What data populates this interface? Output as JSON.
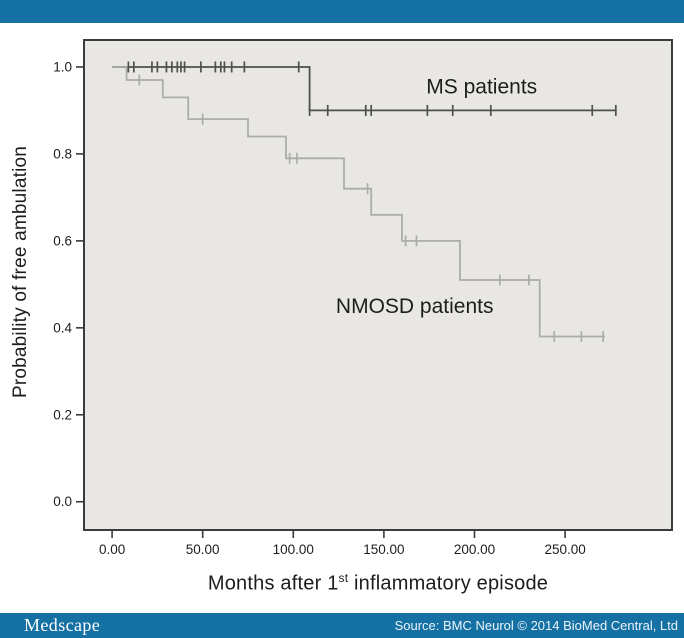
{
  "top_bar": {
    "color": "#1571A4"
  },
  "footer": {
    "brand": "Medscape",
    "source": "Source: BMC Neurol © 2014 BioMed Central, Ltd",
    "color": "#1571A4"
  },
  "colors": {
    "plot_background": "#E8E7E5",
    "frame": "#3B3B39",
    "text": "#1D1D1B",
    "ms_curve": "#4F4F4D",
    "nmosd_curve": "#ACACAA"
  },
  "chart_data": {
    "type": "line",
    "subtype": "kaplan_meier_step",
    "title": "",
    "xlabel": "Months after 1st inflammatory episode",
    "xlabel_parts": {
      "prefix": "Months after 1",
      "sup": "st",
      "suffix": " inflammatory episode"
    },
    "ylabel": "Probability of free ambulation",
    "xlim": [
      -15.5,
      309
    ],
    "ylim": [
      -0.065,
      1.062
    ],
    "xticks": [
      0,
      50,
      100,
      150,
      200,
      250
    ],
    "xtick_labels": [
      "0.00",
      "50.00",
      "100.00",
      "150.00",
      "200.00",
      "250.00"
    ],
    "yticks": [
      0.0,
      0.2,
      0.4,
      0.6,
      0.8,
      1.0
    ],
    "ytick_labels": [
      "0.0",
      "0.2",
      "0.4",
      "0.6",
      "0.8",
      "1.0"
    ],
    "grid": false,
    "legend_position": "in-plot-text-labels",
    "series": [
      {
        "name": "MS patients",
        "color": "#4F4F4D",
        "label_at": [
          204,
          0.955
        ],
        "steps": [
          [
            0,
            1.0
          ],
          [
            109,
            1.0
          ],
          [
            109,
            0.9
          ],
          [
            278,
            0.9
          ]
        ],
        "censors": [
          [
            9,
            1.0
          ],
          [
            12,
            1.0
          ],
          [
            22,
            1.0
          ],
          [
            25,
            1.0
          ],
          [
            30,
            1.0
          ],
          [
            33,
            1.0
          ],
          [
            36,
            1.0
          ],
          [
            38,
            1.0
          ],
          [
            40,
            1.0
          ],
          [
            49,
            1.0
          ],
          [
            57,
            1.0
          ],
          [
            60,
            1.0
          ],
          [
            62,
            1.0
          ],
          [
            66,
            1.0
          ],
          [
            73,
            1.0
          ],
          [
            103,
            1.0
          ],
          [
            109,
            0.9
          ],
          [
            119,
            0.9
          ],
          [
            140,
            0.9
          ],
          [
            143,
            0.9
          ],
          [
            174,
            0.9
          ],
          [
            188,
            0.9
          ],
          [
            209,
            0.9
          ],
          [
            265,
            0.9
          ],
          [
            278,
            0.9
          ]
        ]
      },
      {
        "name": "NMOSD patients",
        "color": "#ACACAA",
        "label_at": [
          167,
          0.45
        ],
        "steps": [
          [
            0,
            1.0
          ],
          [
            8,
            1.0
          ],
          [
            8,
            0.97
          ],
          [
            28,
            0.97
          ],
          [
            28,
            0.93
          ],
          [
            42,
            0.93
          ],
          [
            42,
            0.88
          ],
          [
            75,
            0.88
          ],
          [
            75,
            0.84
          ],
          [
            96,
            0.84
          ],
          [
            96,
            0.79
          ],
          [
            128,
            0.79
          ],
          [
            128,
            0.72
          ],
          [
            143,
            0.72
          ],
          [
            143,
            0.66
          ],
          [
            160,
            0.66
          ],
          [
            160,
            0.6
          ],
          [
            192,
            0.6
          ],
          [
            192,
            0.51
          ],
          [
            236,
            0.51
          ],
          [
            236,
            0.38
          ],
          [
            272,
            0.38
          ]
        ],
        "censors": [
          [
            15,
            0.97
          ],
          [
            50,
            0.88
          ],
          [
            98,
            0.79
          ],
          [
            102,
            0.79
          ],
          [
            141,
            0.72
          ],
          [
            162,
            0.6
          ],
          [
            168,
            0.6
          ],
          [
            214,
            0.51
          ],
          [
            230,
            0.51
          ],
          [
            244,
            0.38
          ],
          [
            259,
            0.38
          ],
          [
            271,
            0.38
          ]
        ]
      }
    ]
  }
}
